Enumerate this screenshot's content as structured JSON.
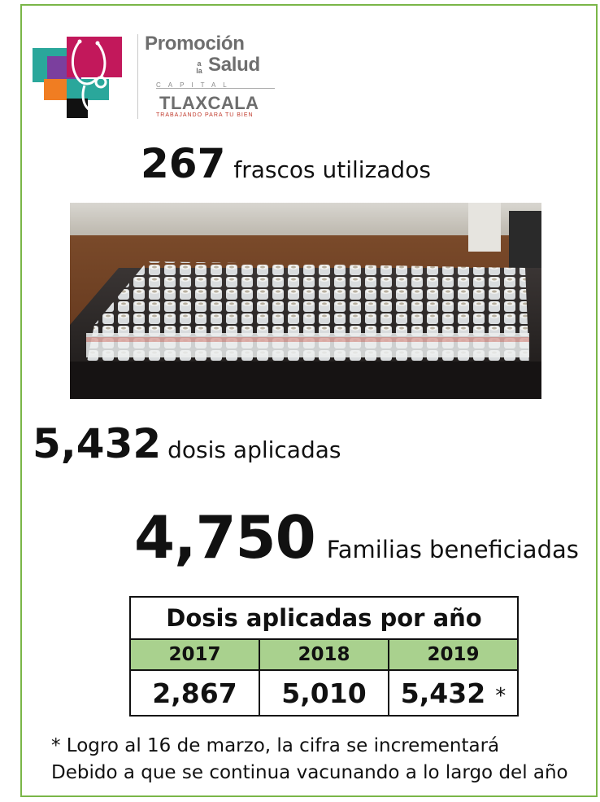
{
  "logo": {
    "promocion": "Promoción",
    "a_la": "a la",
    "salud": "Salud",
    "capital": "CAPITAL",
    "tlaxcala": "TLAXCALA",
    "tagline": "TRABAJANDO PARA TU BIEN",
    "colors": {
      "magenta": "#c2185b",
      "purple": "#7b3f9e",
      "orange": "#f07d22",
      "teal": "#2aa79b",
      "green": "#7ab648"
    }
  },
  "stats": {
    "frascos": {
      "number": "267",
      "label": "frascos utilizados"
    },
    "dosis": {
      "number": "5,432",
      "label": "dosis aplicadas"
    },
    "familias": {
      "number": "4,750",
      "label": "Familias beneficiadas"
    }
  },
  "table": {
    "title": "Dosis aplicadas por año",
    "years": [
      "2017",
      "2018",
      "2019"
    ],
    "values": [
      "2,867",
      "5,010",
      "5,432"
    ],
    "asterisk": "*",
    "header_color": "#a9d18e"
  },
  "notes": {
    "line1": "* Logro al 16 de marzo, la cifra se incrementará",
    "line2": "Debido a que se continua vacunando a lo largo del año"
  },
  "frame_color": "#7ab648"
}
